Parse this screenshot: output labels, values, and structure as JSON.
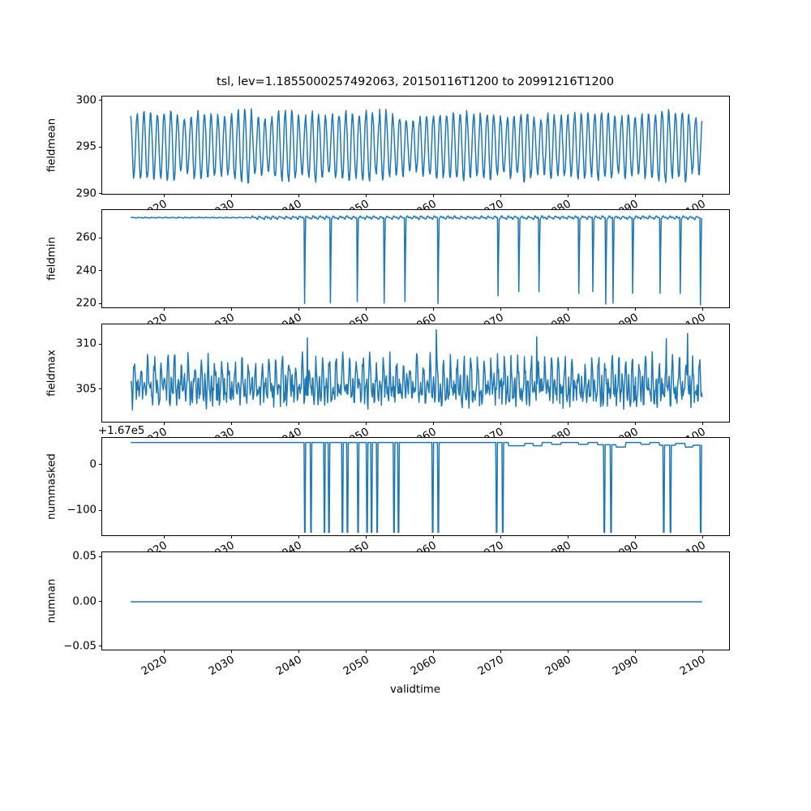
{
  "chart_data": {
    "type": "line",
    "title": "tsl, lev=1.1855000257492063, 20150116T1200 to 20991216T1200",
    "xlabel": "validtime",
    "line_color": "#1f77b4",
    "axes_edge_color": "#000000",
    "text_color": "#000000",
    "background_color": "#ffffff",
    "grid": false,
    "legend": "none",
    "sampling": "monthly points from 2015.042 to 2099.958",
    "xlim": [
      2010.8,
      2104.2
    ],
    "xticks": [
      {
        "v": 2020,
        "label": "2020"
      },
      {
        "v": 2030,
        "label": "2030"
      },
      {
        "v": 2040,
        "label": "2040"
      },
      {
        "v": 2050,
        "label": "2050"
      },
      {
        "v": 2060,
        "label": "2060"
      },
      {
        "v": 2070,
        "label": "2070"
      },
      {
        "v": 2080,
        "label": "2080"
      },
      {
        "v": 2090,
        "label": "2090"
      },
      {
        "v": 2100,
        "label": "2100"
      }
    ],
    "xtick_rotation_deg": 30,
    "subplots": [
      {
        "ylabel": "fieldmean",
        "ylim": [
          289.8,
          300.4
        ],
        "yticks": [
          {
            "v": 290,
            "label": "290"
          },
          {
            "v": 295,
            "label": "295"
          },
          {
            "v": 300,
            "label": "300"
          }
        ],
        "series": {
          "kind": "seasonal",
          "description": "annual cycle, peak near each new year ~297.5-299.9, trough mid-year ~290.3-292.5",
          "base": 295.1,
          "amp": 3.3,
          "amp_jitter": 0.55,
          "noise": 0.3,
          "seed": 11
        }
      },
      {
        "ylabel": "fieldmin",
        "ylim": [
          216.5,
          276.6
        ],
        "yticks": [
          {
            "v": 220,
            "label": "220"
          },
          {
            "v": 240,
            "label": "240"
          },
          {
            "v": 260,
            "label": "260"
          }
        ],
        "series": {
          "kind": "baseline_spikes",
          "description": "flat baseline ~272 (tiny wiggle before 2033, larger annual scallops after), sharp downward spikes",
          "base": 272.0,
          "wiggle_small": 0.3,
          "wiggle_large": 1.15,
          "wiggle_change_year": 2033,
          "noise": 0.25,
          "seed": 22,
          "spikes": [
            [
              2040.9,
              219.8
            ],
            [
              2044.7,
              220.2
            ],
            [
              2048.7,
              221.0
            ],
            [
              2052.7,
              220.0
            ],
            [
              2055.8,
              221.0
            ],
            [
              2060.7,
              219.8
            ],
            [
              2069.6,
              224.5
            ],
            [
              2072.7,
              227.0
            ],
            [
              2075.7,
              227.0
            ],
            [
              2081.6,
              226.0
            ],
            [
              2083.7,
              227.0
            ],
            [
              2085.6,
              219.5
            ],
            [
              2086.7,
              220.0
            ],
            [
              2089.6,
              226.0
            ],
            [
              2093.7,
              226.0
            ],
            [
              2096.7,
              226.0
            ],
            [
              2099.7,
              219.0
            ]
          ]
        }
      },
      {
        "ylabel": "fieldmax",
        "ylim": [
          301.2,
          312.2
        ],
        "yticks": [
          {
            "v": 305,
            "label": "305"
          },
          {
            "v": 310,
            "label": "310"
          }
        ],
        "series": {
          "kind": "noisy_seasonal",
          "description": "noisy oscillation ~302-311 with annual + semiannual components",
          "base": 305.5,
          "a1": 1.2,
          "p1": 2.6,
          "a2": 1.3,
          "p2": 0.8,
          "noise": 1.25,
          "seed": 33,
          "peaks": [
            [
              2041.3,
              310.7
            ],
            [
              2060.5,
              311.6
            ],
            [
              2075.4,
              310.8
            ],
            [
              2094.6,
              310.6
            ],
            [
              2097.8,
              311.2
            ]
          ]
        }
      },
      {
        "ylabel": "nummasked",
        "offset_text": "+1.67e5",
        "display_offset": 167000,
        "ylim": [
          -159,
          58
        ],
        "yticks": [
          {
            "v": 0,
            "label": "0"
          },
          {
            "v": -100,
            "label": "−100"
          }
        ],
        "series": {
          "kind": "steps_pulses",
          "description": "constant 167048 with narrow square drops to 166851 and small level steps after 2071",
          "base": 167048,
          "pulse_value": 166851,
          "pulse_years": [
            2040.9,
            2041.8,
            2043.8,
            2044.5,
            2046.5,
            2047.2,
            2048.8,
            2050.1,
            2050.8,
            2051.6,
            2054.1,
            2054.8,
            2059.9,
            2060.7,
            2069.4,
            2070.3,
            2085.4,
            2086.4,
            2094.2,
            2095.2,
            2099.7
          ],
          "steps": [
            [
              2015.04,
              167048
            ],
            [
              2071.2,
              167041
            ],
            [
              2073.6,
              167046
            ],
            [
              2074.8,
              167041
            ],
            [
              2076.2,
              167048
            ],
            [
              2077.6,
              167044
            ],
            [
              2079.0,
              167048
            ],
            [
              2081.6,
              167044
            ],
            [
              2083.0,
              167048
            ],
            [
              2084.4,
              167043
            ],
            [
              2087.2,
              167038
            ],
            [
              2088.6,
              167048
            ],
            [
              2090.8,
              167044
            ],
            [
              2092.2,
              167048
            ],
            [
              2093.6,
              167042
            ],
            [
              2096.0,
              167046
            ],
            [
              2097.4,
              167038
            ],
            [
              2098.6,
              167042
            ]
          ]
        }
      },
      {
        "ylabel": "numnan",
        "ylim": [
          -0.0553,
          0.0553
        ],
        "yticks": [
          {
            "v": 0.05,
            "label": "0.05"
          },
          {
            "v": 0.0,
            "label": "0.00"
          },
          {
            "v": -0.05,
            "label": "−0.05"
          }
        ],
        "series": {
          "kind": "constant",
          "description": "flat line at zero across full range",
          "value": 0.0
        }
      }
    ]
  }
}
